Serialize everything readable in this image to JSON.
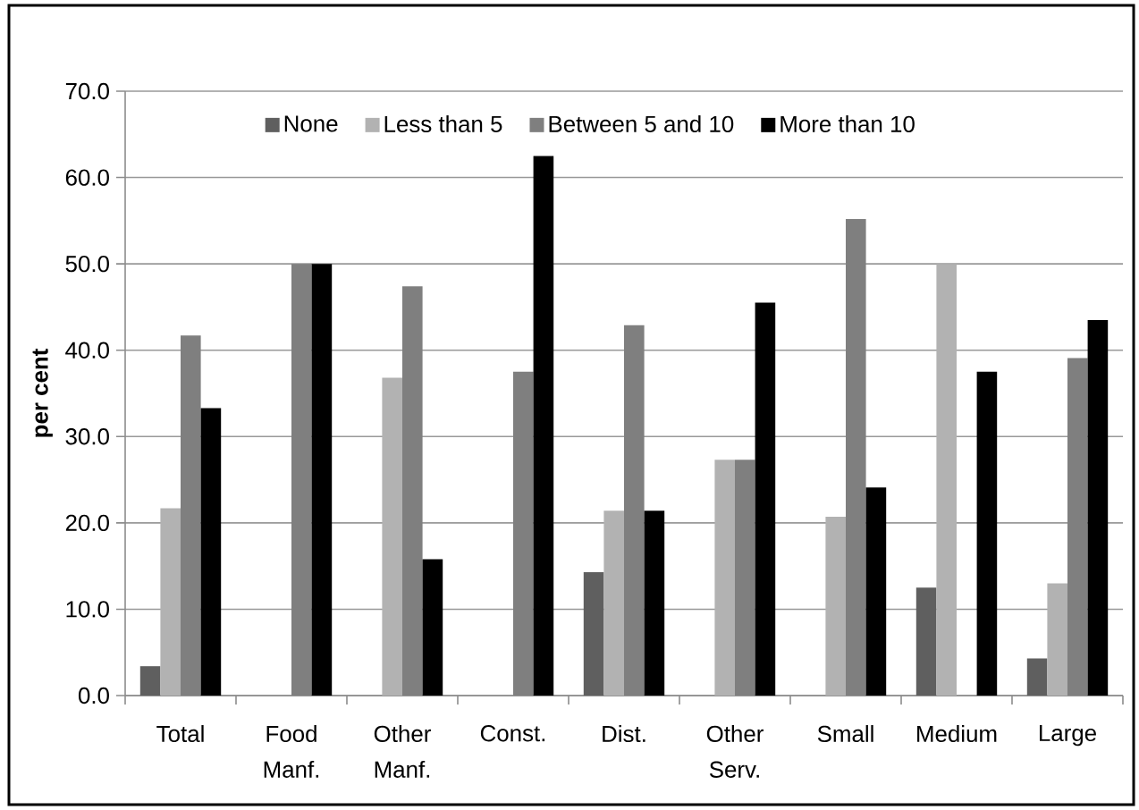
{
  "chart_data": {
    "type": "bar",
    "ylabel": "per cent",
    "categories": [
      "Total",
      "Food Manf.",
      "Other Manf.",
      "Const.",
      "Dist.",
      "Other Serv.",
      "Small",
      "Medium",
      "Large"
    ],
    "series": [
      {
        "name": "None",
        "color": "#5f5f5f",
        "values": [
          3.4,
          0,
          0,
          0,
          14.3,
          0,
          0,
          12.5,
          4.3
        ]
      },
      {
        "name": "Less than 5",
        "color": "#b2b2b2",
        "values": [
          21.7,
          0,
          36.8,
          0,
          21.4,
          27.3,
          20.7,
          50.0,
          13.0
        ]
      },
      {
        "name": "Between 5 and 10",
        "color": "#7f7f7f",
        "values": [
          41.7,
          50.0,
          47.4,
          37.5,
          42.9,
          27.3,
          55.2,
          0,
          39.1
        ]
      },
      {
        "name": "More than 10",
        "color": "#000000",
        "values": [
          33.3,
          50.0,
          15.8,
          62.5,
          21.4,
          45.5,
          24.1,
          37.5,
          43.5
        ]
      }
    ],
    "ylim": [
      0,
      70
    ],
    "yticks": [
      {
        "value": 0,
        "label": "0.0"
      },
      {
        "value": 10,
        "label": "10.0"
      },
      {
        "value": 20,
        "label": "20.0"
      },
      {
        "value": 30,
        "label": "30.0"
      },
      {
        "value": 40,
        "label": "40.0"
      },
      {
        "value": 50,
        "label": "50.0"
      },
      {
        "value": 60,
        "label": "60.0"
      },
      {
        "value": 70,
        "label": "70.0"
      }
    ],
    "grid": "y",
    "legend": "top"
  }
}
